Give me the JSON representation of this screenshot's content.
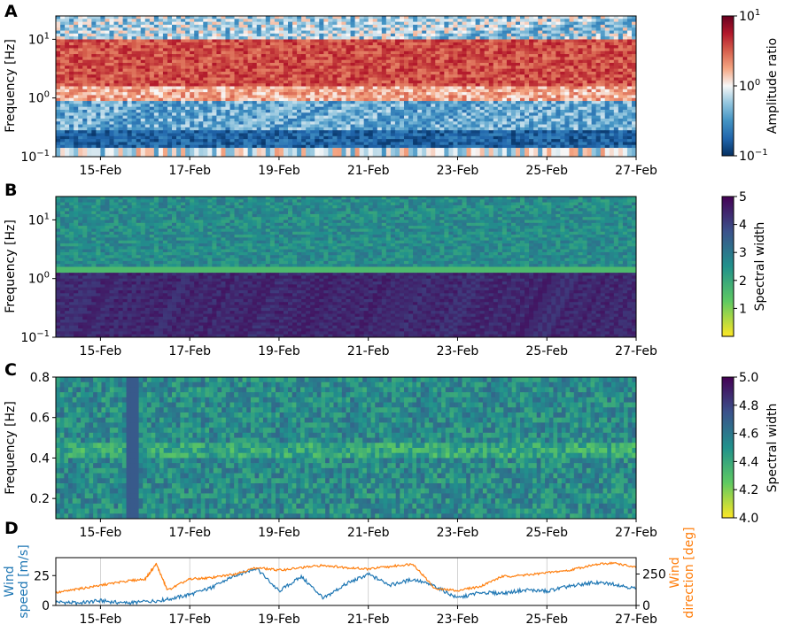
{
  "figure": {
    "panel_letters": [
      "A",
      "B",
      "C",
      "D"
    ]
  },
  "chart_data": [
    {
      "panel": "A",
      "type": "heatmap",
      "ylabel": "Frequency [Hz]",
      "y_scale": "log",
      "ylim": [
        0.1,
        25
      ],
      "yticks": [
        {
          "value": 0.1,
          "base": "10",
          "exp": "−1"
        },
        {
          "value": 1,
          "base": "10",
          "exp": "0"
        },
        {
          "value": 10,
          "base": "10",
          "exp": "1"
        }
      ],
      "xticks": [
        "15-Feb",
        "17-Feb",
        "19-Feb",
        "21-Feb",
        "23-Feb",
        "25-Feb",
        "27-Feb"
      ],
      "x_range": [
        "14-Feb",
        "27-Feb"
      ],
      "colorbar": {
        "label": "Amplitude ratio",
        "scale": "log",
        "range": [
          0.1,
          10
        ],
        "ticks": [
          {
            "value": 10,
            "base": "10",
            "exp": "1"
          },
          {
            "value": 1,
            "base": "10",
            "exp": "0"
          },
          {
            "value": 0.1,
            "base": "10",
            "exp": "−1"
          }
        ],
        "colormap": "RdBu_r",
        "colors": [
          "#053061",
          "#2166ac",
          "#4393c3",
          "#92c5de",
          "#f7f7f7",
          "#f4a582",
          "#d6604d",
          "#b2182b",
          "#67001f"
        ]
      }
    },
    {
      "panel": "B",
      "type": "heatmap",
      "ylabel": "Frequency [Hz]",
      "y_scale": "log",
      "ylim": [
        0.1,
        25
      ],
      "yticks": [
        {
          "value": 0.1,
          "base": "10",
          "exp": "−1"
        },
        {
          "value": 1,
          "base": "10",
          "exp": "0"
        },
        {
          "value": 10,
          "base": "10",
          "exp": "1"
        }
      ],
      "xticks": [
        "15-Feb",
        "17-Feb",
        "19-Feb",
        "21-Feb",
        "23-Feb",
        "25-Feb",
        "27-Feb"
      ],
      "x_range": [
        "14-Feb",
        "27-Feb"
      ],
      "colorbar": {
        "label": "Spectral width",
        "range": [
          0,
          5
        ],
        "ticks": [
          "5",
          "4",
          "3",
          "2",
          "1"
        ],
        "colormap": "viridis_r",
        "colors": [
          "#fde725",
          "#5ec962",
          "#21918c",
          "#3b528b",
          "#440154"
        ]
      }
    },
    {
      "panel": "C",
      "type": "heatmap",
      "ylabel": "Frequency [Hz]",
      "y_scale": "linear",
      "ylim": [
        0.1,
        0.8
      ],
      "yticks": [
        "0.8",
        "0.6",
        "0.4",
        "0.2"
      ],
      "xticks": [
        "15-Feb",
        "17-Feb",
        "19-Feb",
        "21-Feb",
        "23-Feb",
        "25-Feb",
        "27-Feb"
      ],
      "x_range": [
        "14-Feb",
        "27-Feb"
      ],
      "colorbar": {
        "label": "Spectral width",
        "range": [
          4.0,
          5.0
        ],
        "ticks": [
          "5.0",
          "4.8",
          "4.6",
          "4.4",
          "4.2",
          "4.0"
        ],
        "colormap": "viridis_r",
        "colors": [
          "#fde725",
          "#5ec962",
          "#21918c",
          "#3b528b",
          "#440154"
        ]
      }
    },
    {
      "panel": "D",
      "type": "line",
      "xticks": [
        "15-Feb",
        "17-Feb",
        "19-Feb",
        "21-Feb",
        "23-Feb",
        "25-Feb",
        "27-Feb"
      ],
      "x_range": [
        "14-Feb",
        "27-Feb"
      ],
      "grid": true,
      "left_axis": {
        "label_line1": "Wind",
        "label_line2": "speed [m/s]",
        "ticks": [
          "25",
          "0"
        ],
        "ylim": [
          0,
          40
        ],
        "color": "#1f77b4"
      },
      "right_axis": {
        "label_line1": "Wind",
        "label_line2": "direction [deg]",
        "ticks": [
          "250",
          "0"
        ],
        "ylim": [
          0,
          380
        ],
        "color": "#ff7f0e"
      },
      "series": [
        {
          "name": "Wind speed",
          "color": "#1f77b4",
          "x": [
            "14-Feb 00:00",
            "14-Feb 12:00",
            "15-Feb 00:00",
            "15-Feb 12:00",
            "16-Feb 00:00",
            "16-Feb 12:00",
            "17-Feb 00:00",
            "17-Feb 12:00",
            "18-Feb 00:00",
            "18-Feb 12:00",
            "19-Feb 00:00",
            "19-Feb 12:00",
            "20-Feb 00:00",
            "20-Feb 12:00",
            "21-Feb 00:00",
            "21-Feb 12:00",
            "22-Feb 00:00",
            "22-Feb 12:00",
            "23-Feb 00:00",
            "23-Feb 12:00",
            "24-Feb 00:00",
            "24-Feb 12:00",
            "25-Feb 00:00",
            "25-Feb 12:00",
            "26-Feb 00:00",
            "26-Feb 12:00",
            "27-Feb 00:00"
          ],
          "y": [
            3,
            2,
            4,
            2,
            3,
            5,
            9,
            15,
            25,
            31,
            12,
            24,
            6,
            18,
            26,
            17,
            22,
            16,
            6,
            11,
            10,
            13,
            12,
            16,
            19,
            18,
            14
          ]
        },
        {
          "name": "Wind direction",
          "color": "#ff7f0e",
          "x": [
            "14-Feb 00:00",
            "14-Feb 12:00",
            "15-Feb 00:00",
            "15-Feb 12:00",
            "16-Feb 00:00",
            "16-Feb 06:00",
            "16-Feb 12:00",
            "17-Feb 00:00",
            "17-Feb 12:00",
            "18-Feb 00:00",
            "18-Feb 12:00",
            "19-Feb 00:00",
            "19-Feb 12:00",
            "20-Feb 00:00",
            "20-Feb 12:00",
            "21-Feb 00:00",
            "21-Feb 12:00",
            "22-Feb 00:00",
            "22-Feb 12:00",
            "23-Feb 00:00",
            "23-Feb 12:00",
            "24-Feb 00:00",
            "24-Feb 12:00",
            "25-Feb 00:00",
            "25-Feb 12:00",
            "26-Feb 00:00",
            "26-Feb 12:00",
            "27-Feb 00:00"
          ],
          "y": [
            100,
            130,
            160,
            190,
            210,
            330,
            120,
            210,
            220,
            250,
            300,
            280,
            300,
            320,
            300,
            290,
            310,
            330,
            130,
            120,
            150,
            230,
            240,
            260,
            280,
            320,
            340,
            300
          ]
        }
      ]
    }
  ]
}
